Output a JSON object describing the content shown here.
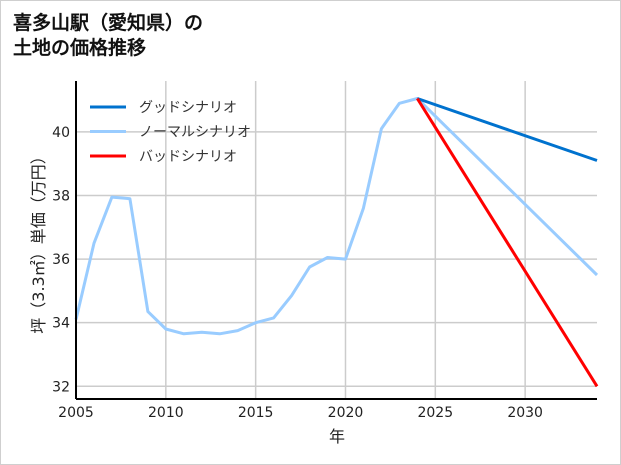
{
  "chart_data": {
    "type": "line",
    "title": [
      "喜多山駅（愛知県）の",
      "土地の価格推移"
    ],
    "xlabel": "年",
    "ylabel": "坪（3.3㎡）単価（万円）",
    "xlim": [
      2005,
      2034
    ],
    "ylim": [
      31.6,
      41.6
    ],
    "xticks": [
      2005,
      2010,
      2015,
      2020,
      2025,
      2030
    ],
    "yticks": [
      32,
      34,
      36,
      38,
      40
    ],
    "grid": true,
    "legend_position": "top-left",
    "series": [
      {
        "name": "グッドシナリオ",
        "color": "#0072CE",
        "x": [
          2024,
          2034
        ],
        "y": [
          41.05,
          39.1
        ]
      },
      {
        "name": "ノーマルシナリオ",
        "color": "#99CCFF",
        "x": [
          2005,
          2006,
          2007,
          2008,
          2009,
          2010,
          2011,
          2012,
          2013,
          2014,
          2015,
          2016,
          2017,
          2018,
          2019,
          2020,
          2021,
          2022,
          2023,
          2024,
          2034
        ],
        "y": [
          34.1,
          36.5,
          37.95,
          37.9,
          34.35,
          33.8,
          33.65,
          33.7,
          33.65,
          33.75,
          34.0,
          34.15,
          34.85,
          35.75,
          36.05,
          36.0,
          37.6,
          40.1,
          40.9,
          41.05,
          35.5
        ]
      },
      {
        "name": "バッドシナリオ",
        "color": "#FF0000",
        "x": [
          2024,
          2034
        ],
        "y": [
          41.05,
          32.0
        ]
      }
    ]
  }
}
